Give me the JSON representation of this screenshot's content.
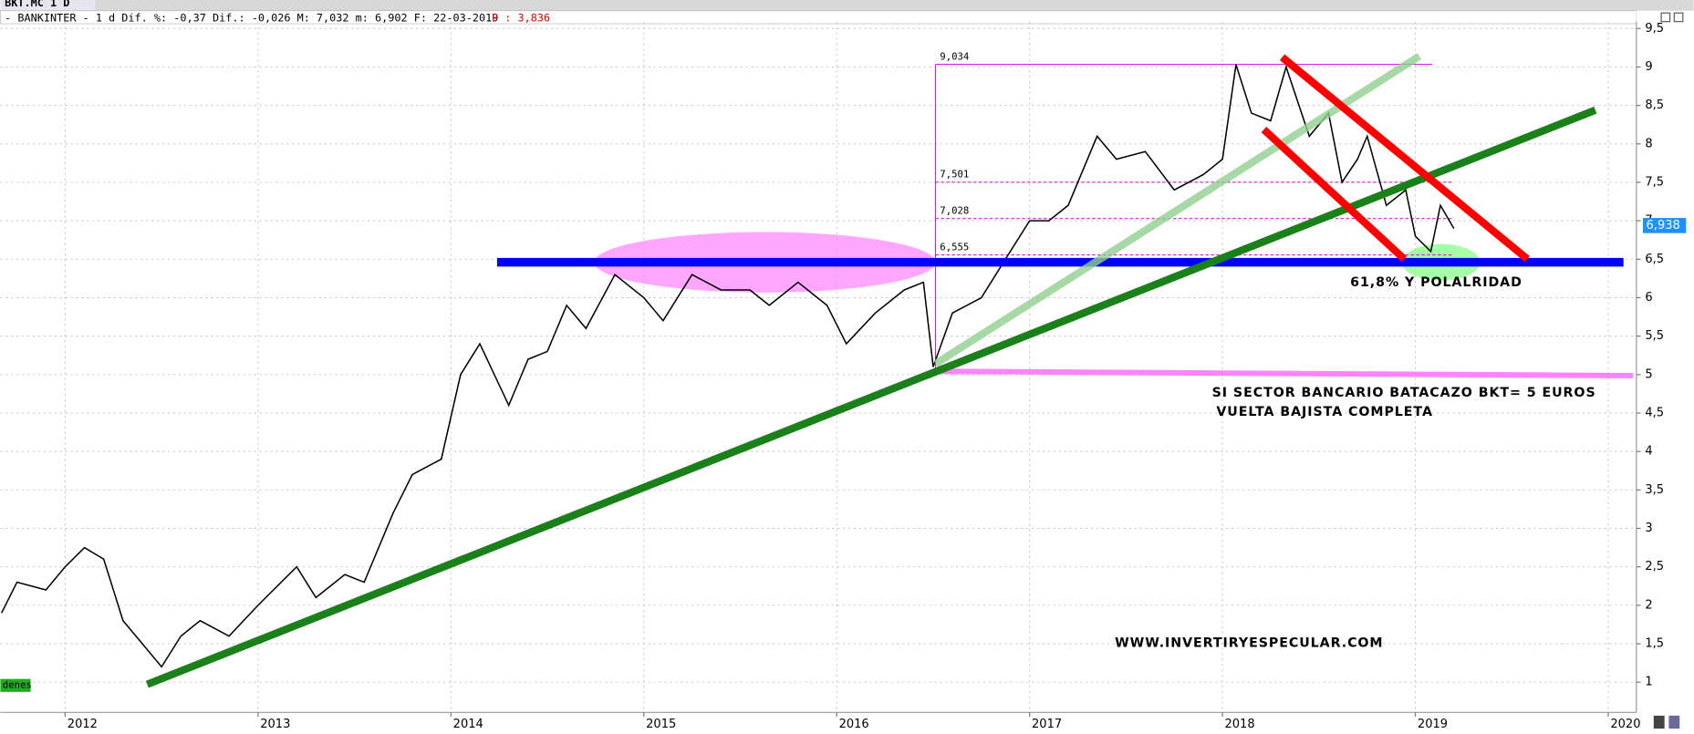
{
  "chart_data": {
    "type": "line",
    "title": "BKT.MC 1 D",
    "subtitle": "- BANKINTER -  1 d Dif. %: -0,37 Dif.: -0,026 M: 7,032 m: 6,902 F: 22-03-2019",
    "price_tag": "P : 3,836",
    "color": "#000000",
    "x": [
      2011.67,
      2011.75,
      2011.9,
      2012.0,
      2012.1,
      2012.2,
      2012.3,
      2012.4,
      2012.5,
      2012.6,
      2012.7,
      2012.85,
      2013.0,
      2013.2,
      2013.3,
      2013.45,
      2013.55,
      2013.7,
      2013.8,
      2013.95,
      2014.05,
      2014.15,
      2014.3,
      2014.4,
      2014.5,
      2014.6,
      2014.7,
      2014.85,
      2015.0,
      2015.1,
      2015.25,
      2015.4,
      2015.55,
      2015.65,
      2015.8,
      2015.95,
      2016.05,
      2016.2,
      2016.35,
      2016.45,
      2016.5,
      2016.6,
      2016.75,
      2016.9,
      2017.0,
      2017.1,
      2017.2,
      2017.35,
      2017.45,
      2017.6,
      2017.75,
      2017.9,
      2018.0,
      2018.07,
      2018.15,
      2018.25,
      2018.33,
      2018.45,
      2018.55,
      2018.62,
      2018.7,
      2018.75,
      2018.85,
      2018.95,
      2019.0,
      2019.08,
      2019.13,
      2019.2
    ],
    "values": [
      1.9,
      2.3,
      2.2,
      2.5,
      2.75,
      2.6,
      1.8,
      1.5,
      1.2,
      1.6,
      1.8,
      1.6,
      2.0,
      2.5,
      2.1,
      2.4,
      2.3,
      3.2,
      3.7,
      3.9,
      5.0,
      5.4,
      4.6,
      5.2,
      5.3,
      5.9,
      5.6,
      6.3,
      6.0,
      5.7,
      6.3,
      6.1,
      6.1,
      5.9,
      6.2,
      5.9,
      5.4,
      5.8,
      6.1,
      6.2,
      5.1,
      5.8,
      6.0,
      6.6,
      7.0,
      7.0,
      7.2,
      8.1,
      7.8,
      7.9,
      7.4,
      7.6,
      7.8,
      9.03,
      8.4,
      8.3,
      9.0,
      8.1,
      8.4,
      7.5,
      7.8,
      8.1,
      7.2,
      7.4,
      6.8,
      6.6,
      7.2,
      6.9
    ],
    "xlim": [
      2011.664,
      2020.146
    ],
    "xticks": [
      2012,
      2013,
      2014,
      2015,
      2016,
      2017,
      2018,
      2019,
      2020
    ],
    "ylim": [
      0.607,
      9.59
    ],
    "yticks": [
      1,
      {
        "value": 1.5,
        "label": "1,5"
      },
      2,
      {
        "value": 2.5,
        "label": "2,5"
      },
      3,
      {
        "value": 3.5,
        "label": "3,5"
      },
      4,
      {
        "value": 4.5,
        "label": "4,5"
      },
      5,
      {
        "value": 5.5,
        "label": "5,5"
      },
      6,
      {
        "value": 6.5,
        "label": "6,5"
      },
      7,
      {
        "value": 7.5,
        "label": "7,5"
      },
      8,
      {
        "value": 8.5,
        "label": "8,5"
      },
      9,
      {
        "value": 9.5,
        "label": "9,5"
      }
    ],
    "grid": true,
    "last_price": {
      "value": 6.938,
      "label": "6,938"
    },
    "fib_levels": [
      {
        "value": 9.034,
        "label": "9,034"
      },
      {
        "value": 7.501,
        "label": "7,501"
      },
      {
        "value": 7.028,
        "label": "7,028"
      },
      {
        "value": 6.555,
        "label": "6,555"
      }
    ],
    "annotations": [
      "61,8% Y POLALRIDAD",
      "SI SECTOR BANCARIO BATACAZO BKT= 5 EUROS",
      "VUELTA BAJISTA COMPLETA",
      "WWW.INVERTIRYESPECULAR.COM"
    ],
    "corner_label": "denes"
  }
}
